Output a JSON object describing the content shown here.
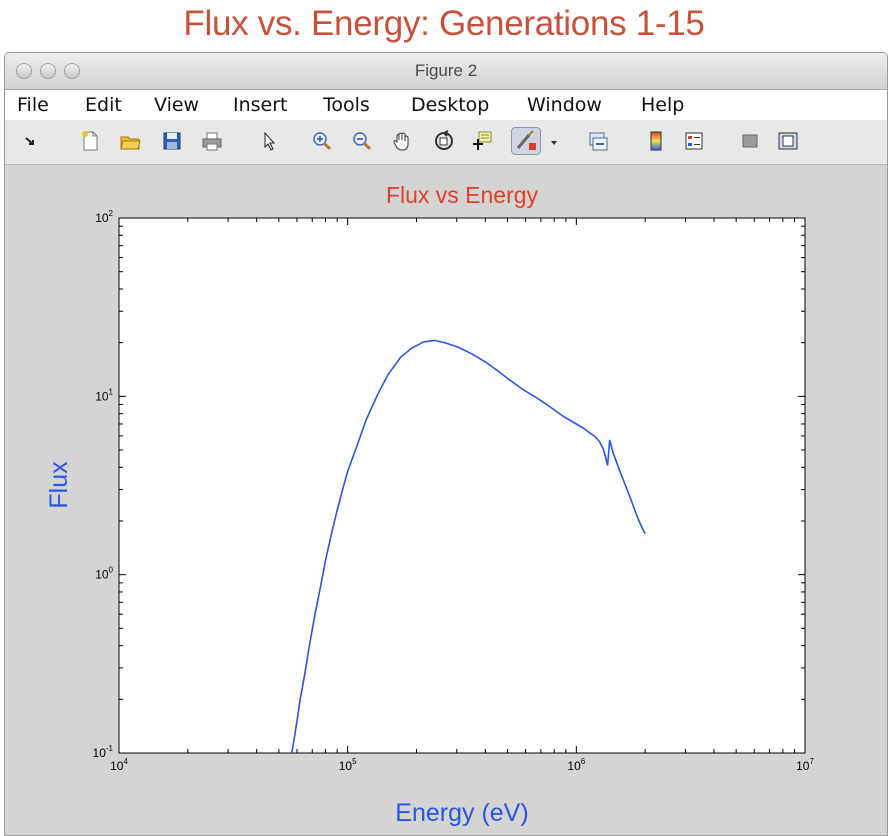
{
  "page_title": "Flux vs. Energy: Generations 1-15",
  "window": {
    "title": "Figure 2"
  },
  "menu": {
    "items": [
      "File",
      "Edit",
      "View",
      "Insert",
      "Tools",
      "Desktop",
      "Window",
      "Help"
    ]
  },
  "toolbar": {
    "icons": [
      "dock-arrow-icon",
      "new-figure-icon",
      "open-file-icon",
      "save-icon",
      "print-icon",
      "pointer-icon",
      "zoom-in-icon",
      "zoom-out-icon",
      "pan-hand-icon",
      "rotate-3d-icon",
      "data-cursor-icon",
      "brush-icon",
      "brush-dropdown-icon",
      "link-plot-icon",
      "colorbar-icon",
      "legend-icon",
      "hide-plot-tools-icon",
      "show-plot-tools-icon"
    ]
  },
  "colors": {
    "page_title": "#c9503a",
    "axes_title": "#e0402a",
    "axis_label": "#2a55e8",
    "line": "#2a55e8"
  },
  "chart_data": {
    "type": "line",
    "title": "Flux vs Energy",
    "xlabel": "Energy (eV)",
    "ylabel": "Flux",
    "xscale": "log",
    "yscale": "log",
    "xlim": [
      10000,
      10000000
    ],
    "ylim": [
      0.1,
      100
    ],
    "x_ticks": [
      10000,
      100000,
      1000000,
      10000000
    ],
    "x_tick_labels": [
      {
        "base": "10",
        "exp": "4"
      },
      {
        "base": "10",
        "exp": "5"
      },
      {
        "base": "10",
        "exp": "6"
      },
      {
        "base": "10",
        "exp": "7"
      }
    ],
    "y_ticks": [
      0.1,
      1,
      10,
      100
    ],
    "y_tick_labels": [
      {
        "base": "10",
        "exp": "-1"
      },
      {
        "base": "10",
        "exp": "0"
      },
      {
        "base": "10",
        "exp": "1"
      },
      {
        "base": "10",
        "exp": "2"
      }
    ],
    "grid": false,
    "series": [
      {
        "x": [
          57000,
          58000,
          60000,
          62000,
          65000,
          68000,
          72000,
          76000,
          80000,
          85000,
          90000,
          95000,
          100000,
          110000,
          120000,
          135000,
          150000,
          170000,
          190000,
          215000,
          240000,
          265000,
          300000,
          350000,
          400000,
          450000,
          500000,
          580000,
          680000,
          780000,
          880000,
          1000000,
          1080000,
          1150000,
          1200000,
          1260000,
          1310000,
          1340000,
          1370000,
          1400000,
          1450000,
          1550000,
          1650000,
          1750000,
          1850000,
          1950000,
          2000000
        ],
        "y": [
          0.1,
          0.115,
          0.15,
          0.2,
          0.28,
          0.4,
          0.6,
          0.85,
          1.2,
          1.7,
          2.3,
          3.0,
          3.8,
          5.3,
          7.3,
          10.2,
          13.2,
          16.5,
          18.6,
          20.2,
          20.6,
          20.0,
          19.0,
          17.3,
          15.6,
          14.0,
          12.6,
          11.0,
          9.7,
          8.6,
          7.7,
          7.0,
          6.6,
          6.2,
          6.0,
          5.6,
          5.1,
          4.6,
          4.1,
          5.7,
          4.8,
          3.8,
          3.1,
          2.55,
          2.1,
          1.8,
          1.7
        ]
      }
    ]
  }
}
